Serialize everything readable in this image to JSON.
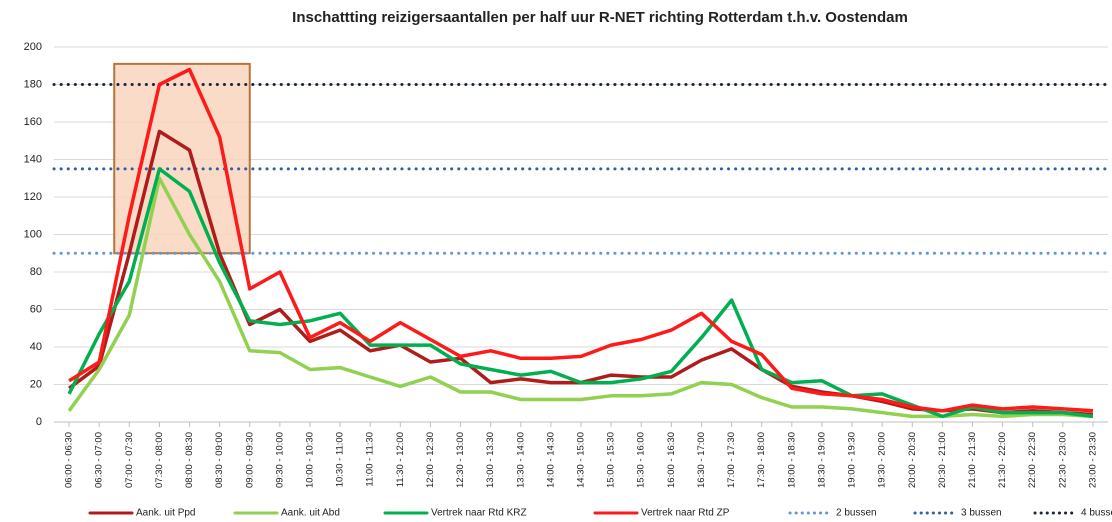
{
  "chart_data": {
    "type": "line",
    "title": "Inschattting  reizigersaantallen  per half uur R-NET richting Rotterdam t.h.v. Oostendam",
    "categories": [
      "06:00 - 06:30",
      "06:30 - 07:00",
      "07:00 - 07:30",
      "07:30 - 08:00",
      "08:00 - 08:30",
      "08:30 - 09:00",
      "09:00 - 09:30",
      "09:30 - 10:00",
      "10:00 - 10:30",
      "10:30 - 11:00",
      "11:00 - 11:30",
      "11:30 - 12:00",
      "12:00 - 12:30",
      "12:30 - 13:00",
      "13:00 - 13:30",
      "13:30 - 14:00",
      "14:00 - 14:30",
      "14:30 - 15:00",
      "15:00 - 15:30",
      "15:30 - 16:00",
      "16:00 - 16:30",
      "16:30 - 17:00",
      "17:00 - 17:30",
      "17:30 - 18:00",
      "18:00 - 18:30",
      "18:30 - 19:00",
      "19:00 - 19:30",
      "19:30 - 20:00",
      "20:00 - 20:30",
      "20:30 - 21:00",
      "21:00 - 21:30",
      "21:30 - 22:00",
      "22:00 - 22:30",
      "22:30 - 23:00",
      "23:00 - 23:30"
    ],
    "series": [
      {
        "name": "Aank. uit Ppd",
        "color": "#b01c1c",
        "values": [
          18,
          30,
          90,
          155,
          145,
          90,
          52,
          60,
          43,
          49,
          38,
          41,
          32,
          34,
          21,
          23,
          21,
          21,
          25,
          24,
          24,
          33,
          39,
          28,
          19,
          16,
          14,
          11,
          7,
          6,
          7,
          5,
          6,
          5,
          4
        ]
      },
      {
        "name": "Aank. uit Abd",
        "color": "#92d050",
        "values": [
          6,
          28,
          57,
          130,
          100,
          75,
          38,
          37,
          28,
          29,
          24,
          19,
          24,
          16,
          16,
          12,
          12,
          12,
          14,
          14,
          15,
          21,
          20,
          13,
          8,
          8,
          7,
          5,
          3,
          3,
          4,
          3,
          4,
          4,
          3
        ]
      },
      {
        "name": "Vertrek naar Rtd KRZ",
        "color": "#00b050",
        "values": [
          15,
          47,
          75,
          135,
          123,
          85,
          54,
          52,
          54,
          58,
          41,
          41,
          41,
          31,
          28,
          25,
          27,
          21,
          21,
          23,
          27,
          45,
          65,
          28,
          21,
          22,
          14,
          15,
          9,
          3,
          8,
          5,
          5,
          5,
          3
        ]
      },
      {
        "name": "Vertrek naar Rtd ZP",
        "color": "#ff1a1a",
        "values": [
          22,
          32,
          110,
          180,
          188,
          152,
          71,
          80,
          45,
          53,
          43,
          53,
          44,
          35,
          38,
          34,
          34,
          35,
          41,
          44,
          49,
          58,
          43,
          36,
          18,
          15,
          14,
          12,
          8,
          6,
          9,
          7,
          8,
          7,
          6
        ]
      }
    ],
    "reference_lines": [
      {
        "name": "2 bussen",
        "value": 90,
        "color": "#5b9bd5"
      },
      {
        "name": "3 bussen",
        "value": 135,
        "color": "#2f5ea3"
      },
      {
        "name": "4 bussen",
        "value": 180,
        "color": "#1b2440"
      }
    ],
    "highlight": {
      "x": [
        1.5,
        6
      ],
      "y": [
        90,
        191
      ],
      "color": "#f8d5bd",
      "border": "#b8733a"
    },
    "ylim": [
      0,
      200
    ],
    "yticks": [
      0,
      20,
      40,
      60,
      80,
      100,
      120,
      140,
      160,
      180,
      200
    ],
    "grid": true,
    "legend": "bottom"
  }
}
